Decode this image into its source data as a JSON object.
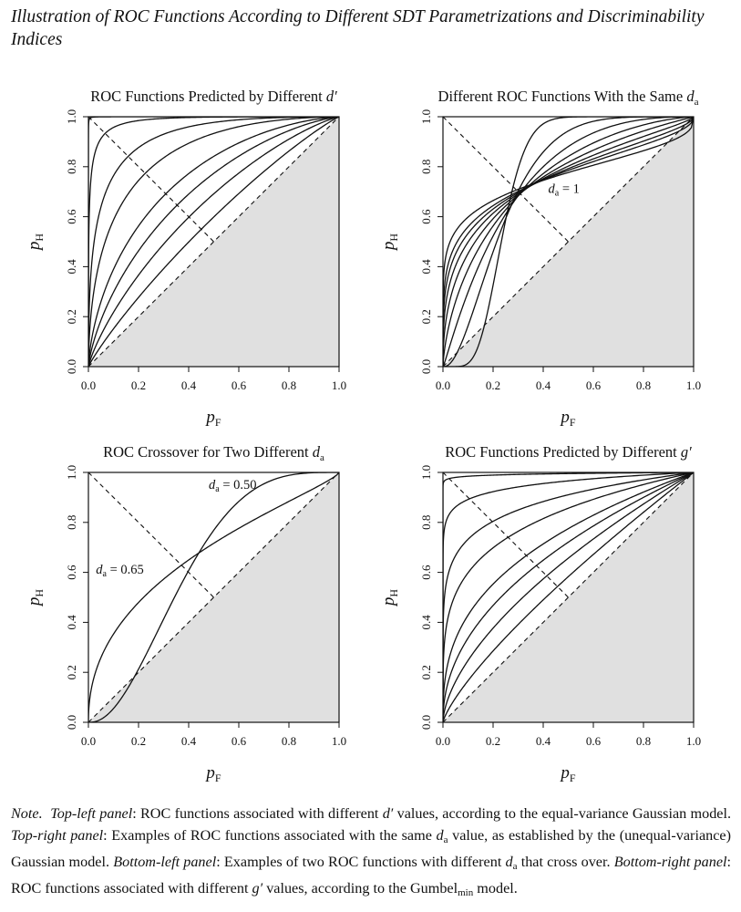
{
  "figure_title": "Illustration of ROC Functions According to Different SDT Parametrizations and Discriminability Indices",
  "note": {
    "note_label": "Note.",
    "tl_label": "Top-left panel",
    "tl_a": ": ROC functions associated with different ",
    "dprime": "d′",
    "tl_b": " values, according to the equal-variance Gaussian model.",
    "tr_label": "Top-right panel",
    "tr_a": ": Examples of ROC functions associated with the same ",
    "da_d": "d",
    "da_sub": "a",
    "tr_b": " value, as established by the (unequal-variance) Gaussian model.",
    "bl_label": "Bottom-left panel",
    "bl_a": ": Examples of two ROC functions with different ",
    "bl_b": " that cross over.",
    "br_label": "Bottom-right panel",
    "br_a": ": ROC functions associated with different ",
    "gprime": "g′",
    "br_b": " values, according to the Gumbel",
    "gumbel_sub": "min",
    "br_c": " model."
  },
  "colors": {
    "curve": "#111111",
    "below_chance_fill": "#e0e0e0",
    "frame": "#111111"
  },
  "chart_data": [
    {
      "id": "top-left",
      "type": "line",
      "title_text": "ROC Functions Predicted by Different",
      "title_symbol": "d′",
      "title_sub": "",
      "xlabel_main": "p",
      "xlabel_sub": "F",
      "ylabel_main": "p",
      "ylabel_sub": "H",
      "xlim": [
        0,
        1
      ],
      "ylim": [
        0,
        1
      ],
      "xticks": [
        "0.0",
        "0.2",
        "0.4",
        "0.6",
        "0.8",
        "1.0"
      ],
      "yticks": [
        "0.0",
        "0.2",
        "0.4",
        "0.6",
        "0.8",
        "1.0"
      ],
      "model": "equal-variance Gaussian",
      "series": [
        {
          "dprime": 0.25
        },
        {
          "dprime": 0.5
        },
        {
          "dprime": 0.75
        },
        {
          "dprime": 1.0
        },
        {
          "dprime": 1.5
        },
        {
          "dprime": 2.0
        },
        {
          "dprime": 3.0
        },
        {
          "dprime": 5.0
        }
      ],
      "shaded_region": "below chance diagonal",
      "reference_lines": [
        "chance diagonal (0,0)-(1,1)",
        "negative diagonal (0,1)-(0.5,0.5)"
      ],
      "annotations": []
    },
    {
      "id": "top-right",
      "type": "line",
      "title_text": "Different ROC Functions With the Same",
      "title_symbol": "d",
      "title_sub": "a",
      "xlabel_main": "p",
      "xlabel_sub": "F",
      "ylabel_main": "p",
      "ylabel_sub": "H",
      "xlim": [
        0,
        1
      ],
      "ylim": [
        0,
        1
      ],
      "xticks": [
        "0.0",
        "0.2",
        "0.4",
        "0.6",
        "0.8",
        "1.0"
      ],
      "yticks": [
        "0.0",
        "0.2",
        "0.4",
        "0.6",
        "0.8",
        "1.0"
      ],
      "model": "unequal-variance Gaussian",
      "series": [
        {
          "da": 1,
          "sigma": 0.25
        },
        {
          "da": 1,
          "sigma": 0.5
        },
        {
          "da": 1,
          "sigma": 0.75
        },
        {
          "da": 1,
          "sigma": 1.0
        },
        {
          "da": 1,
          "sigma": 1.25
        },
        {
          "da": 1,
          "sigma": 1.5
        },
        {
          "da": 1,
          "sigma": 1.75
        },
        {
          "da": 1,
          "sigma": 2.0
        },
        {
          "da": 1,
          "sigma": 2.5
        }
      ],
      "shaded_region": "below chance diagonal",
      "reference_lines": [
        "chance diagonal (0,0)-(1,1)",
        "negative diagonal (0,1)-(0.5,0.5)"
      ],
      "annotations": [
        {
          "symbol": "d",
          "sub": "a",
          "text": "= 1",
          "x": 0.42,
          "y": 0.695
        }
      ]
    },
    {
      "id": "bottom-left",
      "type": "line",
      "title_text": "ROC Crossover for Two Different",
      "title_symbol": "d",
      "title_sub": "a",
      "xlabel_main": "p",
      "xlabel_sub": "F",
      "ylabel_main": "p",
      "ylabel_sub": "H",
      "xlim": [
        0,
        1
      ],
      "ylim": [
        0,
        1
      ],
      "xticks": [
        "0.0",
        "0.2",
        "0.4",
        "0.6",
        "0.8",
        "1.0"
      ],
      "yticks": [
        "0.0",
        "0.2",
        "0.4",
        "0.6",
        "0.8",
        "1.0"
      ],
      "model": "unequal-variance Gaussian",
      "series": [
        {
          "da": 0.5,
          "sigma": 0.55
        },
        {
          "da": 0.65,
          "sigma": 1.35
        }
      ],
      "shaded_region": "below chance diagonal",
      "reference_lines": [
        "chance diagonal (0,0)-(1,1)",
        "negative diagonal (0,1)-(0.5,0.5)"
      ],
      "annotations": [
        {
          "symbol": "d",
          "sub": "a",
          "text": "= 0.50",
          "x": 0.48,
          "y": 0.935
        },
        {
          "symbol": "d",
          "sub": "a",
          "text": "= 0.65",
          "x": 0.03,
          "y": 0.595
        }
      ]
    },
    {
      "id": "bottom-right",
      "type": "line",
      "title_text": "ROC Functions Predicted by Different",
      "title_symbol": "g′",
      "title_sub": "",
      "xlabel_main": "p",
      "xlabel_sub": "F",
      "ylabel_main": "p",
      "ylabel_sub": "H",
      "xlim": [
        0,
        1
      ],
      "ylim": [
        0,
        1
      ],
      "xticks": [
        "0.0",
        "0.2",
        "0.4",
        "0.6",
        "0.8",
        "1.0"
      ],
      "yticks": [
        "0.0",
        "0.2",
        "0.4",
        "0.6",
        "0.8",
        "1.0"
      ],
      "model": "Gumbel-min",
      "series": [
        {
          "gprime": 0.25
        },
        {
          "gprime": 0.5
        },
        {
          "gprime": 0.75
        },
        {
          "gprime": 1.0
        },
        {
          "gprime": 1.5
        },
        {
          "gprime": 2.0
        },
        {
          "gprime": 3.0
        },
        {
          "gprime": 5.0
        }
      ],
      "shaded_region": "below chance diagonal",
      "reference_lines": [
        "chance diagonal (0,0)-(1,1)",
        "negative diagonal (0,1)-(0.5,0.5)"
      ],
      "annotations": []
    }
  ]
}
